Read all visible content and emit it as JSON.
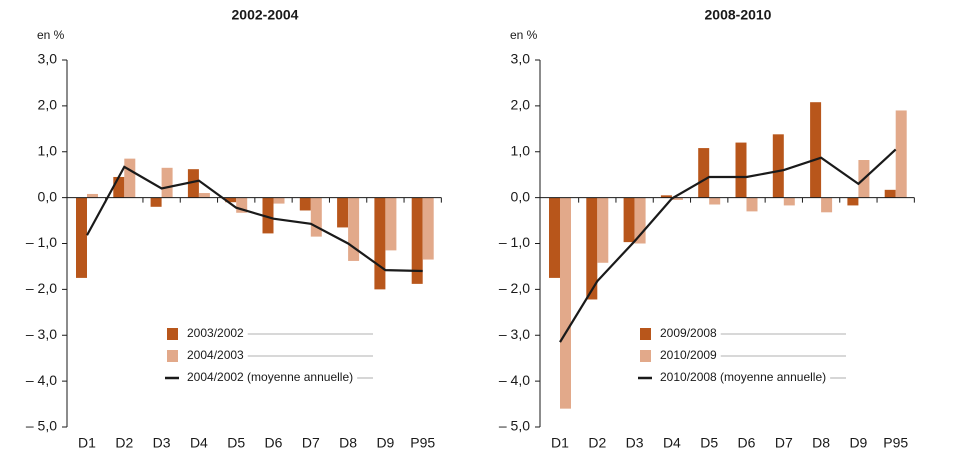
{
  "chart_data": [
    {
      "type": "bar",
      "title": "2002-2004",
      "y_label": "en %",
      "categories": [
        "D1",
        "D2",
        "D3",
        "D4",
        "D5",
        "D6",
        "D7",
        "D8",
        "D9",
        "P95"
      ],
      "series": [
        {
          "name": "2003/2002",
          "color": "#b8561b",
          "values": [
            -1.75,
            0.45,
            -0.2,
            0.62,
            -0.1,
            -0.78,
            -0.28,
            -0.65,
            -2.0,
            -1.88
          ]
        },
        {
          "name": "2004/2003",
          "color": "#e2a98a",
          "values": [
            0.08,
            0.85,
            0.65,
            0.1,
            -0.33,
            -0.13,
            -0.85,
            -1.38,
            -1.15,
            -1.35
          ]
        },
        {
          "name": "2004/2002 (moyenne annuelle)",
          "type": "line",
          "color": "#1a1a1a",
          "values": [
            -0.82,
            0.67,
            0.2,
            0.37,
            -0.22,
            -0.46,
            -0.57,
            -1.0,
            -1.58,
            -1.6
          ]
        }
      ],
      "ylim": [
        -5,
        3
      ],
      "yticks": [
        {
          "value": 3,
          "label": "3,0"
        },
        {
          "value": 2,
          "label": "2,0"
        },
        {
          "value": 1,
          "label": "1,0"
        },
        {
          "value": 0,
          "label": "0,0"
        },
        {
          "value": -1,
          "label": "– 1,0"
        },
        {
          "value": -2,
          "label": "– 2,0"
        },
        {
          "value": -3,
          "label": "– 3,0"
        },
        {
          "value": -4,
          "label": "– 4,0"
        },
        {
          "value": -5,
          "label": "– 5,0"
        }
      ]
    },
    {
      "type": "bar",
      "title": "2008-2010",
      "y_label": "en %",
      "categories": [
        "D1",
        "D2",
        "D3",
        "D4",
        "D5",
        "D6",
        "D7",
        "D8",
        "D9",
        "P95"
      ],
      "series": [
        {
          "name": "2009/2008",
          "color": "#b8561b",
          "values": [
            -1.75,
            -2.22,
            -0.97,
            0.05,
            1.08,
            1.2,
            1.38,
            2.08,
            -0.17,
            0.17
          ]
        },
        {
          "name": "2010/2009",
          "color": "#e2a98a",
          "values": [
            -4.6,
            -1.42,
            -1.0,
            -0.05,
            -0.15,
            -0.3,
            -0.17,
            -0.32,
            0.82,
            1.9
          ]
        },
        {
          "name": "2010/2008 (moyenne annuelle)",
          "type": "line",
          "color": "#1a1a1a",
          "values": [
            -3.15,
            -1.82,
            -0.95,
            -0.02,
            0.45,
            0.45,
            0.6,
            0.87,
            0.3,
            1.05
          ]
        }
      ],
      "ylim": [
        -5,
        3
      ],
      "yticks": [
        {
          "value": 3,
          "label": "3,0"
        },
        {
          "value": 2,
          "label": "2,0"
        },
        {
          "value": 1,
          "label": "1,0"
        },
        {
          "value": 0,
          "label": "0,0"
        },
        {
          "value": -1,
          "label": "– 1,0"
        },
        {
          "value": -2,
          "label": "– 2,0"
        },
        {
          "value": -3,
          "label": "– 3,0"
        },
        {
          "value": -4,
          "label": "– 4,0"
        },
        {
          "value": -5,
          "label": "– 5,0"
        }
      ]
    }
  ]
}
